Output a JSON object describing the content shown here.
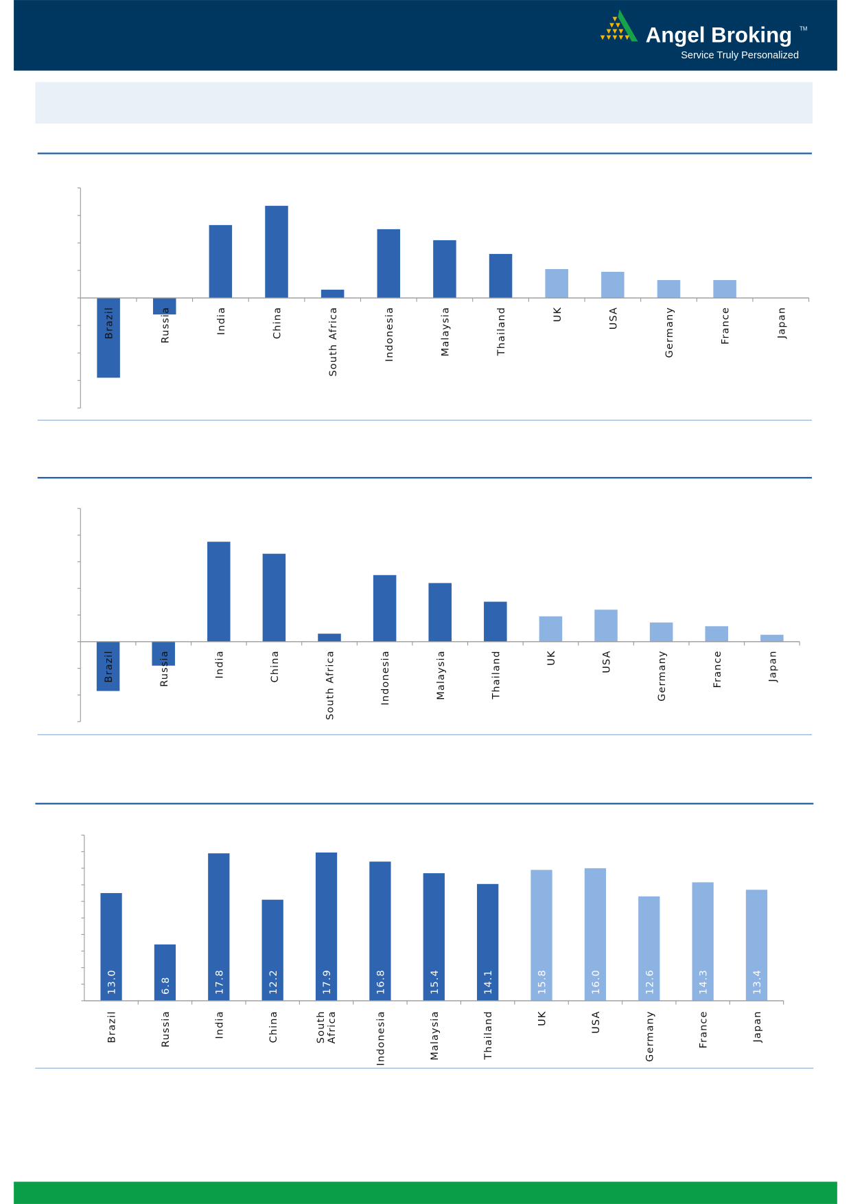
{
  "header": {
    "brand": "Angel Broking",
    "trademark": "TM",
    "tagline": "Service Truly Personalized"
  },
  "colors": {
    "header_bg": "#003760",
    "emerging": "#2e64b0",
    "developed": "#8db3e2",
    "footer": "#0a9e48",
    "banner": "#eaf0f8"
  },
  "chart_data": [
    {
      "type": "bar",
      "title": "",
      "categories": [
        "Brazil",
        "Russia",
        "India",
        "China",
        "South Africa",
        "Indonesia",
        "Malaysia",
        "Thailand",
        "UK",
        "USA",
        "Germany",
        "France",
        "Japan"
      ],
      "values": [
        -2.9,
        -0.6,
        2.65,
        3.35,
        0.3,
        2.5,
        2.1,
        1.6,
        1.05,
        0.95,
        0.65,
        0.65,
        0.0
      ],
      "groups": [
        "emerging",
        "emerging",
        "emerging",
        "emerging",
        "emerging",
        "emerging",
        "emerging",
        "emerging",
        "developed",
        "developed",
        "developed",
        "developed",
        "developed"
      ],
      "ylim": [
        -4,
        4
      ],
      "ytick_step": 1,
      "data_labels": false,
      "grid": false
    },
    {
      "type": "bar",
      "title": "",
      "categories": [
        "Brazil",
        "Russia",
        "India",
        "China",
        "South Africa",
        "Indonesia",
        "Malaysia",
        "Thailand",
        "UK",
        "USA",
        "Germany",
        "France",
        "Japan"
      ],
      "values": [
        -1.85,
        -0.9,
        3.75,
        3.3,
        0.3,
        2.5,
        2.2,
        1.5,
        0.95,
        1.2,
        0.72,
        0.58,
        0.26
      ],
      "groups": [
        "emerging",
        "emerging",
        "emerging",
        "emerging",
        "emerging",
        "emerging",
        "emerging",
        "emerging",
        "developed",
        "developed",
        "developed",
        "developed",
        "developed"
      ],
      "ylim": [
        -3,
        5
      ],
      "ytick_step": 1,
      "data_labels": false,
      "grid": false
    },
    {
      "type": "bar",
      "title": "",
      "categories": [
        "Brazil",
        "Russia",
        "India",
        "China",
        "South Africa",
        "Indonesia",
        "Malaysia",
        "Thailand",
        "UK",
        "USA",
        "Germany",
        "France",
        "Japan"
      ],
      "values": [
        13.0,
        6.8,
        17.8,
        12.2,
        17.9,
        16.8,
        15.4,
        14.1,
        15.8,
        16.0,
        12.6,
        14.3,
        13.4
      ],
      "value_labels": [
        "13.0",
        "6.8",
        "17.8",
        "12.2",
        "17.9",
        "16.8",
        "15.4",
        "14.1",
        "15.8",
        "16.0",
        "12.6",
        "14.3",
        "13.4"
      ],
      "groups": [
        "emerging",
        "emerging",
        "emerging",
        "emerging",
        "emerging",
        "emerging",
        "emerging",
        "emerging",
        "developed",
        "developed",
        "developed",
        "developed",
        "developed"
      ],
      "ylim": [
        0,
        20
      ],
      "ytick_step": 2,
      "data_labels": true,
      "grid": false
    }
  ]
}
